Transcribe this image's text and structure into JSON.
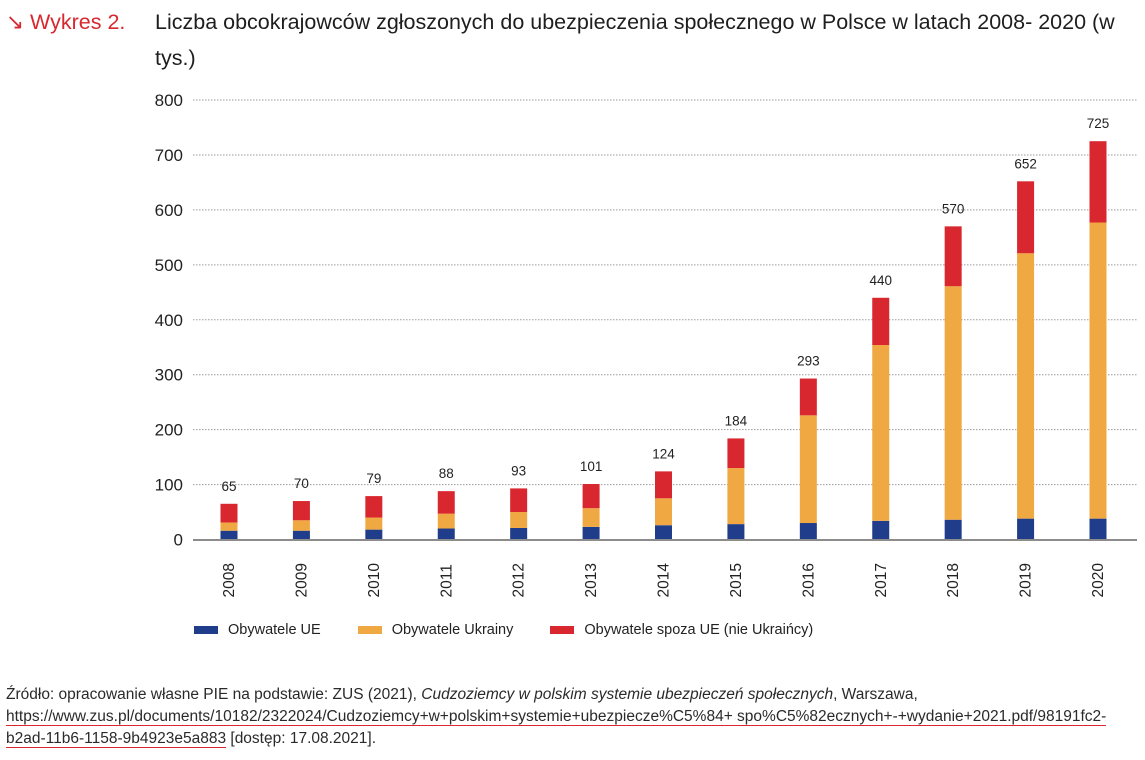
{
  "header": {
    "label": "Wykres 2.",
    "arrow_icon": "↘",
    "title": "Liczba obcokrajowców zgłoszonych do ubezpieczenia społecznego w Polsce w latach 2008- 2020 (w tys.)"
  },
  "colors": {
    "accent": "#d9272f",
    "eu": "#1f3d8a",
    "ukraine": "#f0a942",
    "other": "#d9272f",
    "grid": "#9a9a9a",
    "axis": "#8c8c8c"
  },
  "chart_data": {
    "type": "bar",
    "stacked": true,
    "title": "Liczba obcokrajowców zgłoszonych do ubezpieczenia społecznego w Polsce w latach 2008- 2020 (w tys.)",
    "xlabel": "",
    "ylabel": "",
    "ylim": [
      0,
      800
    ],
    "yticks": [
      0,
      100,
      200,
      300,
      400,
      500,
      600,
      700,
      800
    ],
    "grid": true,
    "legend_position": "bottom",
    "categories": [
      "2008",
      "2009",
      "2010",
      "2011",
      "2012",
      "2013",
      "2014",
      "2015",
      "2016",
      "2017",
      "2018",
      "2019",
      "2020"
    ],
    "series": [
      {
        "name": "Obywatele UE",
        "color": "#1f3d8a",
        "values": [
          16,
          16,
          18,
          20,
          21,
          23,
          26,
          28,
          30,
          34,
          36,
          38,
          38
        ]
      },
      {
        "name": "Obywatele Ukrainy",
        "color": "#f0a942",
        "values": [
          15,
          19,
          22,
          27,
          29,
          34,
          49,
          102,
          196,
          320,
          425,
          483,
          539
        ]
      },
      {
        "name": "Obywatele spoza UE (nie Ukraińcy)",
        "color": "#d9272f",
        "values": [
          34,
          35,
          39,
          41,
          43,
          44,
          49,
          54,
          67,
          86,
          109,
          131,
          148
        ]
      }
    ],
    "totals": [
      65,
      70,
      79,
      88,
      93,
      101,
      124,
      184,
      293,
      440,
      570,
      652,
      725
    ]
  },
  "source": {
    "prefix": "Źródło: opracowanie własne PIE na podstawie: ZUS (2021), ",
    "italic": "Cudzoziemcy w polskim systemie ubezpieczeń społecznych",
    "middle": ", Warszawa, ",
    "link": "https://www.zus.pl/documents/10182/2322024/Cudzoziemcy+w+polskim+systemie+ubezpiecze%C5%84+ spo%C5%82ecznych+-+wydanie+2021.pdf/98191fc2-b2ad-11b6-1158-9b4923e5a883",
    "suffix": " [dostęp: 17.08.2021]."
  }
}
